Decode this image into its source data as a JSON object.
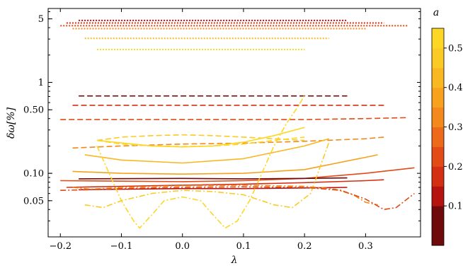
{
  "chart_data": {
    "type": "line",
    "xlabel": "λ",
    "ylabel": "δω[%]",
    "colorbar_label": "a",
    "y_scale": "log",
    "xlim": [
      -0.22,
      0.39
    ],
    "ylim": [
      0.02,
      6.5
    ],
    "x_ticks": [
      {
        "value": -0.2,
        "label": "−0.2"
      },
      {
        "value": -0.1,
        "label": "−0.1"
      },
      {
        "value": 0.0,
        "label": "0.0"
      },
      {
        "value": 0.1,
        "label": "0.1"
      },
      {
        "value": 0.2,
        "label": "0.2"
      },
      {
        "value": 0.3,
        "label": "0.3"
      }
    ],
    "y_ticks": [
      {
        "value": 5,
        "label": "5"
      },
      {
        "value": 1,
        "label": "1"
      },
      {
        "value": 0.5,
        "label": "0.50"
      },
      {
        "value": 0.1,
        "label": "0.10"
      },
      {
        "value": 0.05,
        "label": "0.05"
      }
    ],
    "colorbar": {
      "range": [
        0.0,
        0.55
      ],
      "ticks": [
        {
          "value": 0.1,
          "label": "0.1"
        },
        {
          "value": 0.2,
          "label": "0.2"
        },
        {
          "value": 0.3,
          "label": "0.3"
        },
        {
          "value": 0.4,
          "label": "0.4"
        },
        {
          "value": 0.5,
          "label": "0.5"
        }
      ],
      "bands": [
        {
          "from": 0.0,
          "to": 0.1,
          "color": "#6e0a0a"
        },
        {
          "from": 0.1,
          "to": 0.15,
          "color": "#b5130f"
        },
        {
          "from": 0.15,
          "to": 0.2,
          "color": "#d42f12"
        },
        {
          "from": 0.2,
          "to": 0.25,
          "color": "#e24a16"
        },
        {
          "from": 0.25,
          "to": 0.3,
          "color": "#ec6a1a"
        },
        {
          "from": 0.3,
          "to": 0.35,
          "color": "#f3881c"
        },
        {
          "from": 0.35,
          "to": 0.4,
          "color": "#f7a11f"
        },
        {
          "from": 0.4,
          "to": 0.45,
          "color": "#f9b722"
        },
        {
          "from": 0.45,
          "to": 0.5,
          "color": "#fbca24"
        },
        {
          "from": 0.5,
          "to": 0.55,
          "color": "#fdd726"
        }
      ]
    },
    "series": [
      {
        "style": "dotted",
        "color": "#e24a16",
        "x": [
          -0.2,
          0.37
        ],
        "y": [
          4.2,
          4.2
        ]
      },
      {
        "style": "dotted",
        "color": "#d42f12",
        "x": [
          -0.19,
          0.33
        ],
        "y": [
          4.5,
          4.5
        ]
      },
      {
        "style": "dotted",
        "color": "#b5130f",
        "x": [
          -0.17,
          0.27
        ],
        "y": [
          4.8,
          4.8
        ]
      },
      {
        "style": "dotted",
        "color": "#f3881c",
        "x": [
          -0.18,
          0.3
        ],
        "y": [
          3.9,
          3.9
        ]
      },
      {
        "style": "dotted",
        "color": "#f9b722",
        "x": [
          -0.16,
          0.24
        ],
        "y": [
          3.05,
          3.05
        ]
      },
      {
        "style": "dotted",
        "color": "#fdd726",
        "x": [
          -0.14,
          0.2
        ],
        "y": [
          2.3,
          2.3
        ]
      },
      {
        "style": "dashed",
        "color": "#6e0a0a",
        "x": [
          -0.17,
          0.27
        ],
        "y": [
          0.71,
          0.71
        ]
      },
      {
        "style": "dashed",
        "color": "#d42f12",
        "x": [
          -0.18,
          0.33
        ],
        "y": [
          0.56,
          0.56
        ]
      },
      {
        "style": "dashed",
        "color": "#e24a16",
        "x": [
          -0.2,
          -0.1,
          0.0,
          0.1,
          0.2,
          0.3,
          0.37
        ],
        "y": [
          0.39,
          0.39,
          0.39,
          0.39,
          0.39,
          0.4,
          0.41
        ]
      },
      {
        "style": "dashed",
        "color": "#f3881c",
        "x": [
          -0.18,
          -0.1,
          0.0,
          0.1,
          0.2,
          0.3,
          0.33
        ],
        "y": [
          0.19,
          0.2,
          0.21,
          0.215,
          0.225,
          0.24,
          0.25
        ]
      },
      {
        "style": "dashed",
        "color": "#fbca24",
        "x": [
          -0.14,
          -0.1,
          -0.05,
          0.0,
          0.05,
          0.1,
          0.15,
          0.2
        ],
        "y": [
          0.23,
          0.25,
          0.26,
          0.265,
          0.26,
          0.25,
          0.24,
          0.23
        ]
      },
      {
        "style": "dashed",
        "color": "#fdd726",
        "x": [
          -0.14,
          -0.1,
          -0.05,
          0.0,
          0.05,
          0.1,
          0.15,
          0.2
        ],
        "y": [
          0.23,
          0.21,
          0.2,
          0.197,
          0.2,
          0.21,
          0.23,
          0.25
        ]
      },
      {
        "style": "solid",
        "color": "#fdd726",
        "x": [
          -0.14,
          -0.05,
          0.0,
          0.05,
          0.1,
          0.15,
          0.2
        ],
        "y": [
          0.23,
          0.2,
          0.195,
          0.2,
          0.22,
          0.26,
          0.32
        ]
      },
      {
        "style": "solid",
        "color": "#f9b722",
        "x": [
          -0.16,
          -0.1,
          0.0,
          0.1,
          0.2,
          0.24
        ],
        "y": [
          0.16,
          0.14,
          0.13,
          0.145,
          0.2,
          0.24
        ]
      },
      {
        "style": "solid",
        "color": "#f7a11f",
        "x": [
          -0.18,
          -0.1,
          0.0,
          0.1,
          0.2,
          0.3,
          0.32
        ],
        "y": [
          0.105,
          0.1,
          0.098,
          0.1,
          0.11,
          0.15,
          0.16
        ]
      },
      {
        "style": "solid",
        "color": "#e24a16",
        "x": [
          -0.2,
          -0.1,
          0.0,
          0.1,
          0.2,
          0.3,
          0.38
        ],
        "y": [
          0.083,
          0.082,
          0.081,
          0.083,
          0.088,
          0.1,
          0.115
        ]
      },
      {
        "style": "solid",
        "color": "#d42f12",
        "x": [
          -0.19,
          -0.1,
          0.0,
          0.1,
          0.2,
          0.3,
          0.33
        ],
        "y": [
          0.07,
          0.072,
          0.074,
          0.076,
          0.079,
          0.083,
          0.085
        ]
      },
      {
        "style": "solid",
        "color": "#b5130f",
        "x": [
          -0.17,
          0.0,
          0.1,
          0.2,
          0.27
        ],
        "y": [
          0.066,
          0.068,
          0.068,
          0.069,
          0.07
        ]
      },
      {
        "style": "solid",
        "color": "#6e0a0a",
        "x": [
          -0.17,
          0.0,
          0.1,
          0.2,
          0.27
        ],
        "y": [
          0.087,
          0.088,
          0.087,
          0.088,
          0.089
        ]
      },
      {
        "style": "dashdot",
        "color": "#fdd726",
        "x": [
          -0.14,
          -0.12,
          -0.1,
          -0.08,
          -0.07,
          -0.05,
          -0.03,
          0.0,
          0.03,
          0.05,
          0.07,
          0.09,
          0.11,
          0.13,
          0.15,
          0.17,
          0.19,
          0.2
        ],
        "y": [
          0.2,
          0.1,
          0.05,
          0.03,
          0.025,
          0.035,
          0.05,
          0.055,
          0.05,
          0.035,
          0.025,
          0.03,
          0.05,
          0.1,
          0.2,
          0.35,
          0.55,
          0.72
        ]
      },
      {
        "style": "dashdot",
        "color": "#fbca24",
        "x": [
          -0.16,
          -0.13,
          -0.1,
          -0.05,
          0.0,
          0.05,
          0.1,
          0.13,
          0.15,
          0.18,
          0.21,
          0.24
        ],
        "y": [
          0.045,
          0.042,
          0.05,
          0.06,
          0.065,
          0.063,
          0.058,
          0.05,
          0.045,
          0.042,
          0.06,
          0.22
        ]
      },
      {
        "style": "dashdot",
        "color": "#f3881c",
        "x": [
          -0.18,
          -0.15,
          -0.1,
          0.0,
          0.1,
          0.2,
          0.25,
          0.28,
          0.3,
          0.32
        ],
        "y": [
          0.07,
          0.067,
          0.07,
          0.073,
          0.074,
          0.072,
          0.067,
          0.058,
          0.048,
          0.045
        ]
      },
      {
        "style": "dashdot",
        "color": "#e24a16",
        "x": [
          -0.2,
          -0.15,
          -0.1,
          0.0,
          0.1,
          0.2,
          0.26,
          0.3,
          0.33,
          0.35,
          0.38
        ],
        "y": [
          0.065,
          0.066,
          0.068,
          0.07,
          0.071,
          0.07,
          0.065,
          0.052,
          0.04,
          0.042,
          0.06
        ]
      }
    ]
  }
}
